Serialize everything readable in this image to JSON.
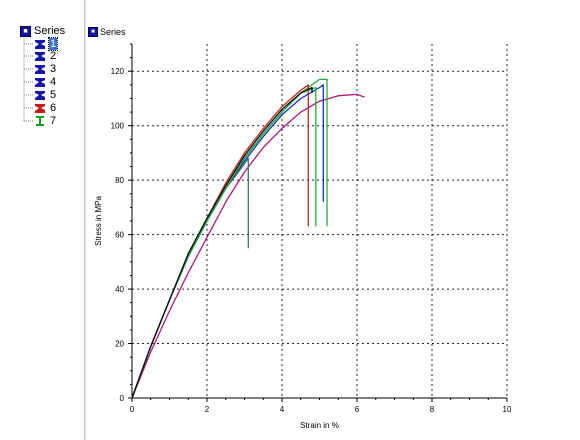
{
  "tree": {
    "root_label": "Series",
    "items": [
      {
        "label": "1",
        "icon": "blue-specimen-icon",
        "color": "#1515a8",
        "selected": true
      },
      {
        "label": "2",
        "icon": "blue-specimen-icon",
        "color": "#1515a8",
        "selected": false
      },
      {
        "label": "3",
        "icon": "blue-specimen-icon",
        "color": "#1515a8",
        "selected": false
      },
      {
        "label": "4",
        "icon": "blue-specimen-icon",
        "color": "#1515a8",
        "selected": false
      },
      {
        "label": "5",
        "icon": "blue-specimen-icon",
        "color": "#1515a8",
        "selected": false
      },
      {
        "label": "6",
        "icon": "red-specimen-icon",
        "color": "#c81818",
        "selected": false
      },
      {
        "label": "7",
        "icon": "green-specimen-icon",
        "color": "#12a012",
        "selected": false
      }
    ]
  },
  "chart_header": {
    "label": "Series"
  },
  "chart_data": {
    "type": "line",
    "title": "",
    "xlabel": "Strain in %",
    "ylabel": "Stress in MPa",
    "xlim": [
      0,
      10
    ],
    "ylim": [
      0,
      130
    ],
    "xticks": [
      0,
      2,
      4,
      6,
      8,
      10
    ],
    "yticks": [
      0,
      20,
      40,
      60,
      80,
      100,
      120
    ],
    "grid": true,
    "series": [
      {
        "color": "#b01878",
        "x": [
          0,
          0.5,
          1,
          1.5,
          2,
          2.5,
          3,
          3.5,
          4,
          4.5,
          5,
          5.5,
          6,
          6.2
        ],
        "y": [
          0,
          17,
          32,
          46,
          59,
          72,
          83,
          92,
          99,
          105,
          109,
          111,
          111.5,
          110.5
        ]
      },
      {
        "color": "#3a7070",
        "x": [
          0,
          0.5,
          1,
          1.5,
          2,
          2.5,
          3,
          3.1,
          3.1
        ],
        "y": [
          0,
          19,
          36,
          52,
          65,
          77,
          86,
          88,
          55
        ]
      },
      {
        "color": "#28a83c",
        "x": [
          0,
          0.5,
          1,
          1.5,
          2,
          2.5,
          3,
          3.5,
          4,
          4.5,
          5,
          5.2,
          5.2
        ],
        "y": [
          0,
          19,
          36,
          52,
          65,
          77,
          88,
          97,
          105,
          112,
          117,
          117,
          63
        ]
      },
      {
        "color": "#c82828",
        "x": [
          0,
          0.5,
          1,
          1.5,
          2,
          2.5,
          3,
          3.5,
          4,
          4.5,
          4.7,
          4.7
        ],
        "y": [
          0,
          19,
          36,
          53,
          66,
          79,
          90,
          99,
          107,
          113,
          115,
          63
        ]
      },
      {
        "color": "#1830c0",
        "x": [
          0,
          0.5,
          1,
          1.5,
          2,
          2.5,
          3,
          3.5,
          4,
          4.5,
          5,
          5.1,
          5.1
        ],
        "y": [
          0,
          19,
          36,
          52,
          65,
          77,
          87,
          96,
          104,
          110,
          114,
          115,
          72
        ]
      },
      {
        "color": "#20b040",
        "x": [
          0,
          0.5,
          1,
          1.5,
          2,
          2.5,
          3,
          3.5,
          4,
          4.5,
          4.9,
          4.9
        ],
        "y": [
          0,
          19,
          36,
          52,
          65,
          77,
          88,
          97,
          105,
          112,
          114,
          63
        ]
      },
      {
        "color": "#101010",
        "x": [
          0,
          0.5,
          1,
          1.5,
          2,
          2.5,
          3,
          3.5,
          4,
          4.5,
          4.8,
          4.8
        ],
        "y": [
          0,
          19,
          36,
          53,
          66,
          78,
          89,
          98,
          106,
          112,
          114,
          112
        ]
      }
    ]
  }
}
